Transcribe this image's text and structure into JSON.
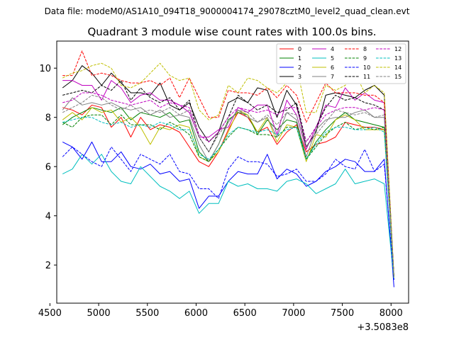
{
  "chart_data": {
    "type": "line",
    "suptitle": "Data file: modeM0/AS1A10_094T18_9000004174_29078cztM0_level2_quad_clean.evt",
    "title": "Quadrant 3 module wise count rates with 100.0s bins.",
    "xlabel": "",
    "ylabel": "",
    "x_offset_text": "+3.5083e8",
    "xlim": [
      4570,
      8180
    ],
    "ylim": [
      0.45,
      11.1
    ],
    "xticks": [
      4500,
      5000,
      5500,
      6000,
      6500,
      7000,
      7500,
      8000
    ],
    "yticks": [
      2,
      4,
      6,
      8,
      10
    ],
    "x": [
      4630,
      4730,
      4830,
      4930,
      5030,
      5130,
      5230,
      5330,
      5430,
      5530,
      5630,
      5730,
      5830,
      5930,
      6030,
      6130,
      6230,
      6330,
      6430,
      6530,
      6630,
      6730,
      6830,
      6930,
      7030,
      7130,
      7230,
      7330,
      7430,
      7530,
      7630,
      7730,
      7830,
      7930,
      8030
    ],
    "legend_position": "top-right",
    "series": [
      {
        "name": "0",
        "color": "#ff0000",
        "dash": "solid",
        "values": [
          8.4,
          8.3,
          8.1,
          8.5,
          8.4,
          7.6,
          8.0,
          7.2,
          8.0,
          7.5,
          7.7,
          7.6,
          7.4,
          6.8,
          6.2,
          6.0,
          6.6,
          7.5,
          8.2,
          8.0,
          7.4,
          7.6,
          6.9,
          7.4,
          7.7,
          6.6,
          6.9,
          7.0,
          7.2,
          7.8,
          7.7,
          7.6,
          7.6,
          7.5,
          1.5
        ]
      },
      {
        "name": "1",
        "color": "#008000",
        "dash": "solid",
        "values": [
          7.7,
          8.0,
          8.2,
          8.4,
          8.3,
          8.2,
          8.4,
          7.9,
          8.2,
          8.1,
          8.0,
          8.2,
          7.8,
          7.9,
          6.6,
          6.2,
          6.9,
          7.9,
          8.2,
          8.1,
          7.3,
          7.9,
          7.5,
          7.9,
          7.8,
          6.3,
          7.0,
          7.5,
          7.9,
          8.2,
          7.9,
          7.8,
          7.7,
          7.6,
          1.5
        ]
      },
      {
        "name": "2",
        "color": "#0000ff",
        "dash": "solid",
        "values": [
          7.0,
          6.8,
          6.3,
          7.0,
          6.2,
          6.2,
          6.6,
          6.0,
          5.9,
          6.1,
          5.7,
          5.8,
          5.4,
          5.5,
          4.3,
          4.8,
          4.8,
          5.4,
          5.8,
          5.7,
          5.7,
          6.5,
          5.5,
          5.9,
          5.7,
          5.2,
          5.4,
          5.8,
          6.0,
          6.3,
          6.2,
          5.8,
          5.8,
          6.3,
          1.1
        ]
      },
      {
        "name": "3",
        "color": "#000000",
        "dash": "solid",
        "values": [
          9.2,
          9.5,
          10.1,
          9.8,
          9.3,
          9.8,
          9.4,
          9.0,
          9.0,
          8.9,
          9.4,
          8.5,
          8.3,
          8.6,
          7.6,
          7.0,
          7.4,
          8.6,
          8.8,
          8.6,
          9.2,
          9.1,
          8.0,
          9.1,
          8.5,
          6.8,
          7.4,
          8.9,
          9.0,
          8.9,
          8.8,
          9.1,
          9.3,
          8.9,
          1.5
        ]
      },
      {
        "name": "4",
        "color": "#bf00bf",
        "dash": "solid",
        "values": [
          9.5,
          9.5,
          9.3,
          9.3,
          8.7,
          9.5,
          9.2,
          8.6,
          8.9,
          9.0,
          8.7,
          8.7,
          8.5,
          8.2,
          7.2,
          7.2,
          7.5,
          7.6,
          8.4,
          8.2,
          8.5,
          8.5,
          7.3,
          8.7,
          8.1,
          6.7,
          7.6,
          8.5,
          8.4,
          9.2,
          8.7,
          9.0,
          8.7,
          8.6,
          1.5
        ]
      },
      {
        "name": "5",
        "color": "#00bfbf",
        "dash": "solid",
        "values": [
          5.7,
          5.9,
          6.5,
          6.1,
          6.5,
          5.8,
          5.4,
          5.3,
          6.0,
          5.6,
          5.2,
          5.0,
          4.7,
          5.0,
          4.1,
          4.5,
          4.5,
          5.4,
          5.2,
          5.3,
          5.1,
          5.1,
          5.0,
          5.4,
          5.5,
          5.3,
          4.9,
          5.1,
          5.3,
          5.9,
          5.3,
          5.4,
          5.5,
          5.3,
          1.4
        ]
      },
      {
        "name": "6",
        "color": "#bfbf00",
        "dash": "solid",
        "values": [
          7.9,
          8.2,
          7.9,
          8.4,
          8.2,
          8.3,
          7.8,
          8.0,
          7.6,
          6.9,
          7.6,
          7.5,
          7.7,
          7.6,
          6.4,
          6.2,
          6.6,
          7.4,
          8.3,
          8.1,
          7.4,
          8.0,
          7.0,
          7.7,
          7.6,
          6.2,
          7.3,
          7.2,
          7.9,
          8.1,
          7.9,
          7.5,
          7.5,
          7.5,
          1.5
        ]
      },
      {
        "name": "7",
        "color": "#808080",
        "dash": "solid",
        "values": [
          8.3,
          8.8,
          8.5,
          8.6,
          8.5,
          8.6,
          8.4,
          8.3,
          8.4,
          8.1,
          8.3,
          8.0,
          8.1,
          8.0,
          6.9,
          6.2,
          6.9,
          7.8,
          8.3,
          8.0,
          7.8,
          8.0,
          7.2,
          8.2,
          7.9,
          6.4,
          7.5,
          7.9,
          8.0,
          8.0,
          8.2,
          8.3,
          8.0,
          8.0,
          1.5
        ]
      },
      {
        "name": "8",
        "color": "#ff0000",
        "dash": "dashed",
        "values": [
          9.7,
          9.7,
          10.7,
          9.7,
          9.8,
          9.7,
          9.5,
          9.4,
          9.4,
          9.5,
          9.3,
          9.6,
          8.8,
          9.6,
          8.8,
          8.0,
          8.0,
          9.1,
          9.0,
          9.0,
          8.9,
          9.2,
          8.8,
          9.3,
          8.9,
          7.8,
          8.6,
          9.4,
          9.0,
          9.0,
          9.0,
          8.9,
          8.9,
          8.6,
          1.5
        ]
      },
      {
        "name": "9",
        "color": "#008000",
        "dash": "dashed",
        "values": [
          7.8,
          7.6,
          8.0,
          8.1,
          8.1,
          7.7,
          8.1,
          7.7,
          7.7,
          7.7,
          7.5,
          7.8,
          7.6,
          7.3,
          6.4,
          6.2,
          6.7,
          7.2,
          7.6,
          7.5,
          7.3,
          7.3,
          7.2,
          7.6,
          7.6,
          6.3,
          6.8,
          7.3,
          7.6,
          7.8,
          7.5,
          7.6,
          7.5,
          7.6,
          1.5
        ]
      },
      {
        "name": "10",
        "color": "#0000ff",
        "dash": "dashed",
        "values": [
          6.4,
          6.8,
          6.5,
          6.2,
          6.0,
          6.8,
          6.3,
          5.8,
          6.5,
          6.3,
          6.1,
          6.5,
          5.8,
          5.7,
          5.1,
          5.1,
          4.7,
          5.9,
          6.4,
          6.2,
          6.2,
          6.1,
          5.6,
          5.7,
          5.9,
          5.4,
          5.4,
          5.7,
          6.3,
          6.0,
          5.9,
          6.7,
          5.8,
          6.1,
          1.4
        ]
      },
      {
        "name": "11",
        "color": "#000000",
        "dash": "dashed",
        "values": [
          8.9,
          9.0,
          9.1,
          9.0,
          9.3,
          9.1,
          9.5,
          8.7,
          9.2,
          8.8,
          8.6,
          8.8,
          8.3,
          8.7,
          7.2,
          6.6,
          7.4,
          8.0,
          8.9,
          8.6,
          8.3,
          8.5,
          8.2,
          8.3,
          8.6,
          7.0,
          7.6,
          8.4,
          8.9,
          8.7,
          8.8,
          8.6,
          8.5,
          8.3,
          1.5
        ]
      },
      {
        "name": "12",
        "color": "#bf00bf",
        "dash": "dashed",
        "values": [
          8.6,
          8.7,
          9.0,
          9.0,
          8.9,
          8.7,
          8.6,
          8.5,
          8.6,
          8.7,
          8.4,
          8.6,
          8.5,
          8.4,
          7.3,
          7.0,
          7.4,
          8.0,
          8.4,
          8.3,
          8.2,
          8.3,
          8.1,
          8.4,
          8.4,
          7.0,
          7.6,
          8.1,
          8.3,
          8.4,
          8.4,
          8.3,
          8.4,
          8.3,
          1.5
        ]
      },
      {
        "name": "13",
        "color": "#00bfbf",
        "dash": "dashed",
        "values": [
          7.8,
          7.9,
          8.0,
          8.0,
          7.8,
          7.7,
          7.8,
          7.6,
          7.7,
          7.6,
          7.8,
          7.7,
          7.5,
          7.5,
          6.5,
          6.3,
          6.7,
          7.3,
          7.6,
          7.5,
          7.4,
          7.5,
          7.3,
          7.5,
          7.6,
          6.3,
          6.9,
          7.4,
          7.6,
          7.6,
          7.5,
          7.5,
          7.6,
          7.4,
          1.5
        ]
      },
      {
        "name": "14",
        "color": "#bfbf00",
        "dash": "dashed",
        "values": [
          9.6,
          9.8,
          9.9,
          10.1,
          10.2,
          10.0,
          9.3,
          9.2,
          9.4,
          9.8,
          10.2,
          9.7,
          9.5,
          9.6,
          8.3,
          7.9,
          8.1,
          9.3,
          9.0,
          9.6,
          9.5,
          9.2,
          9.0,
          9.4,
          10.1,
          8.2,
          8.2,
          9.3,
          9.1,
          9.3,
          9.8,
          9.0,
          9.3,
          9.0,
          1.5
        ]
      },
      {
        "name": "15",
        "color": "#808080",
        "dash": "dashed",
        "values": [
          8.2,
          8.4,
          8.6,
          8.9,
          8.8,
          8.5,
          8.3,
          8.5,
          8.2,
          8.3,
          8.2,
          8.4,
          8.1,
          8.3,
          7.2,
          6.6,
          7.3,
          7.8,
          8.3,
          8.2,
          7.8,
          8.1,
          7.7,
          8.2,
          8.1,
          6.8,
          7.3,
          7.8,
          8.3,
          8.2,
          8.1,
          8.2,
          8.0,
          8.1,
          1.5
        ]
      }
    ]
  }
}
